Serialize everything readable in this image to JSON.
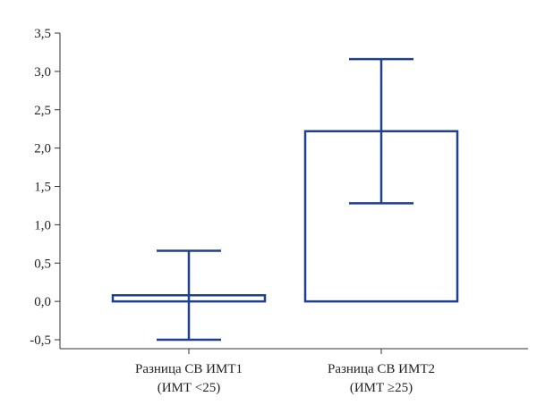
{
  "chart_data": {
    "type": "bar",
    "title": "",
    "xlabel": "",
    "ylabel": "",
    "ylim": [
      -0.5,
      3.5
    ],
    "yticks": [
      -0.5,
      0.0,
      0.5,
      1.0,
      1.5,
      2.0,
      2.5,
      3.0,
      3.5
    ],
    "ytick_labels": [
      "-0,5",
      "0,0",
      "0,5",
      "1,0",
      "1,5",
      "2,0",
      "2,5",
      "3,0",
      "3,5"
    ],
    "categories": [
      [
        "Разница СВ ИМТ1",
        "(ИМТ <25)"
      ],
      [
        "Разница СВ ИМТ2",
        "(ИМТ ≥25)"
      ]
    ],
    "values": [
      0.08,
      2.22
    ],
    "error_low": [
      -0.5,
      1.28
    ],
    "error_high": [
      0.66,
      3.16
    ],
    "bar_style": "outline",
    "color": "#1f3f8f",
    "grid": false,
    "legend": "none"
  }
}
